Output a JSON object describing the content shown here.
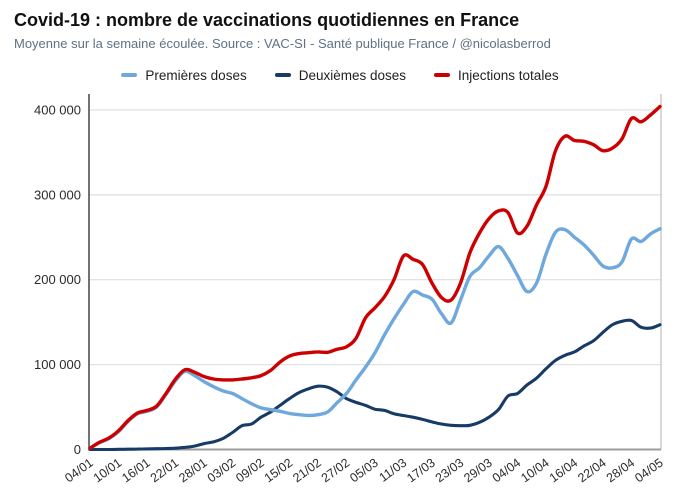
{
  "header": {
    "title": "Covid-19 : nombre de vaccinations quotidiennes en France",
    "subtitle": "Moyenne sur la semaine écoulée. Source : VAC-SI - Santé publique France / @nicolasberrod"
  },
  "chart_data": {
    "type": "line",
    "title": "Covid-19 : nombre de vaccinations quotidiennes en France",
    "subtitle": "Moyenne sur la semaine écoulée. Source : VAC-SI - Santé publique France / @nicolasberrod",
    "grid": "horizontal",
    "legend_position": "top-center",
    "ylim": [
      0,
      420000
    ],
    "y_ticks": [
      {
        "value": 0,
        "label": "0"
      },
      {
        "value": 100000,
        "label": "100 000"
      },
      {
        "value": 200000,
        "label": "200 000"
      },
      {
        "value": 300000,
        "label": "300 000"
      },
      {
        "value": 400000,
        "label": "400 000"
      }
    ],
    "x_tick_labels": [
      "04/01",
      "10/01",
      "16/01",
      "22/01",
      "28/01",
      "03/02",
      "09/02",
      "15/02",
      "21/02",
      "27/02",
      "05/03",
      "11/03",
      "17/03",
      "23/03",
      "29/03",
      "04/04",
      "10/04",
      "16/04",
      "22/04",
      "28/04",
      "04/05"
    ],
    "sample_dates": [
      "04/01",
      "06/01",
      "08/01",
      "10/01",
      "12/01",
      "14/01",
      "16/01",
      "18/01",
      "20/01",
      "22/01",
      "24/01",
      "26/01",
      "28/01",
      "30/01",
      "01/02",
      "03/02",
      "05/02",
      "07/02",
      "09/02",
      "11/02",
      "13/02",
      "15/02",
      "17/02",
      "19/02",
      "21/02",
      "23/02",
      "25/02",
      "27/02",
      "01/03",
      "03/03",
      "05/03",
      "07/03",
      "09/03",
      "11/03",
      "13/03",
      "15/03",
      "17/03",
      "19/03",
      "21/03",
      "23/03",
      "25/03",
      "27/03",
      "29/03",
      "31/03",
      "02/04",
      "04/04",
      "06/04",
      "08/04",
      "10/04",
      "12/04",
      "14/04",
      "16/04",
      "18/04",
      "20/04",
      "22/04",
      "24/04",
      "26/04",
      "28/04",
      "30/04",
      "02/05",
      "04/05"
    ],
    "series": [
      {
        "name": "Premières doses",
        "color": "#6FA8DC",
        "values": [
          1500,
          8000,
          13000,
          21000,
          33000,
          42000,
          45000,
          50000,
          65000,
          81000,
          92000,
          87000,
          80000,
          74000,
          69000,
          66000,
          60000,
          54000,
          49000,
          47000,
          45000,
          42500,
          41000,
          40000,
          41000,
          44000,
          55000,
          66000,
          82000,
          97000,
          114000,
          135000,
          154000,
          171000,
          186000,
          182000,
          177000,
          160000,
          149000,
          176000,
          204000,
          214000,
          228000,
          239000,
          225000,
          205000,
          186000,
          196000,
          230000,
          256000,
          259000,
          250000,
          241000,
          229000,
          216000,
          214000,
          221000,
          248000,
          245000,
          254000,
          260000
        ]
      },
      {
        "name": "Deuxièmes doses",
        "color": "#173B66",
        "values": [
          0,
          0,
          0,
          200,
          300,
          500,
          700,
          900,
          1200,
          1500,
          2500,
          4000,
          7000,
          9000,
          13000,
          20000,
          28000,
          30000,
          38000,
          44000,
          52000,
          60000,
          67000,
          71500,
          74500,
          73500,
          68000,
          60000,
          55500,
          52000,
          47500,
          46000,
          42000,
          40000,
          38000,
          35500,
          32500,
          30000,
          28500,
          28000,
          28500,
          32000,
          38000,
          47000,
          63000,
          66000,
          76000,
          84000,
          95000,
          105000,
          111000,
          115000,
          122000,
          128000,
          138000,
          147000,
          151000,
          152000,
          144000,
          143000,
          147000
        ]
      },
      {
        "name": "Injections totales",
        "color": "#CC0000",
        "values": [
          1500,
          8500,
          13500,
          22000,
          34000,
          43000,
          46000,
          51000,
          66000,
          83000,
          94000,
          91000,
          86000,
          83000,
          82000,
          82000,
          83000,
          84500,
          87000,
          93000,
          103000,
          110000,
          113000,
          114000,
          115000,
          114500,
          118000,
          121000,
          131000,
          155000,
          167000,
          180000,
          200000,
          228000,
          224000,
          218000,
          196000,
          179000,
          176000,
          196000,
          232000,
          255000,
          272000,
          281000,
          279000,
          255000,
          263000,
          288000,
          310000,
          352000,
          369000,
          364000,
          363000,
          359000,
          352000,
          355000,
          366000,
          390000,
          386000,
          394000,
          404000
        ]
      }
    ],
    "style": {
      "gridline_color": "#E2E2E2",
      "left_axis_color": "#595959",
      "bottom_axis_color": "#9C9C9C",
      "right_border_color": "#C8C8C8"
    }
  }
}
